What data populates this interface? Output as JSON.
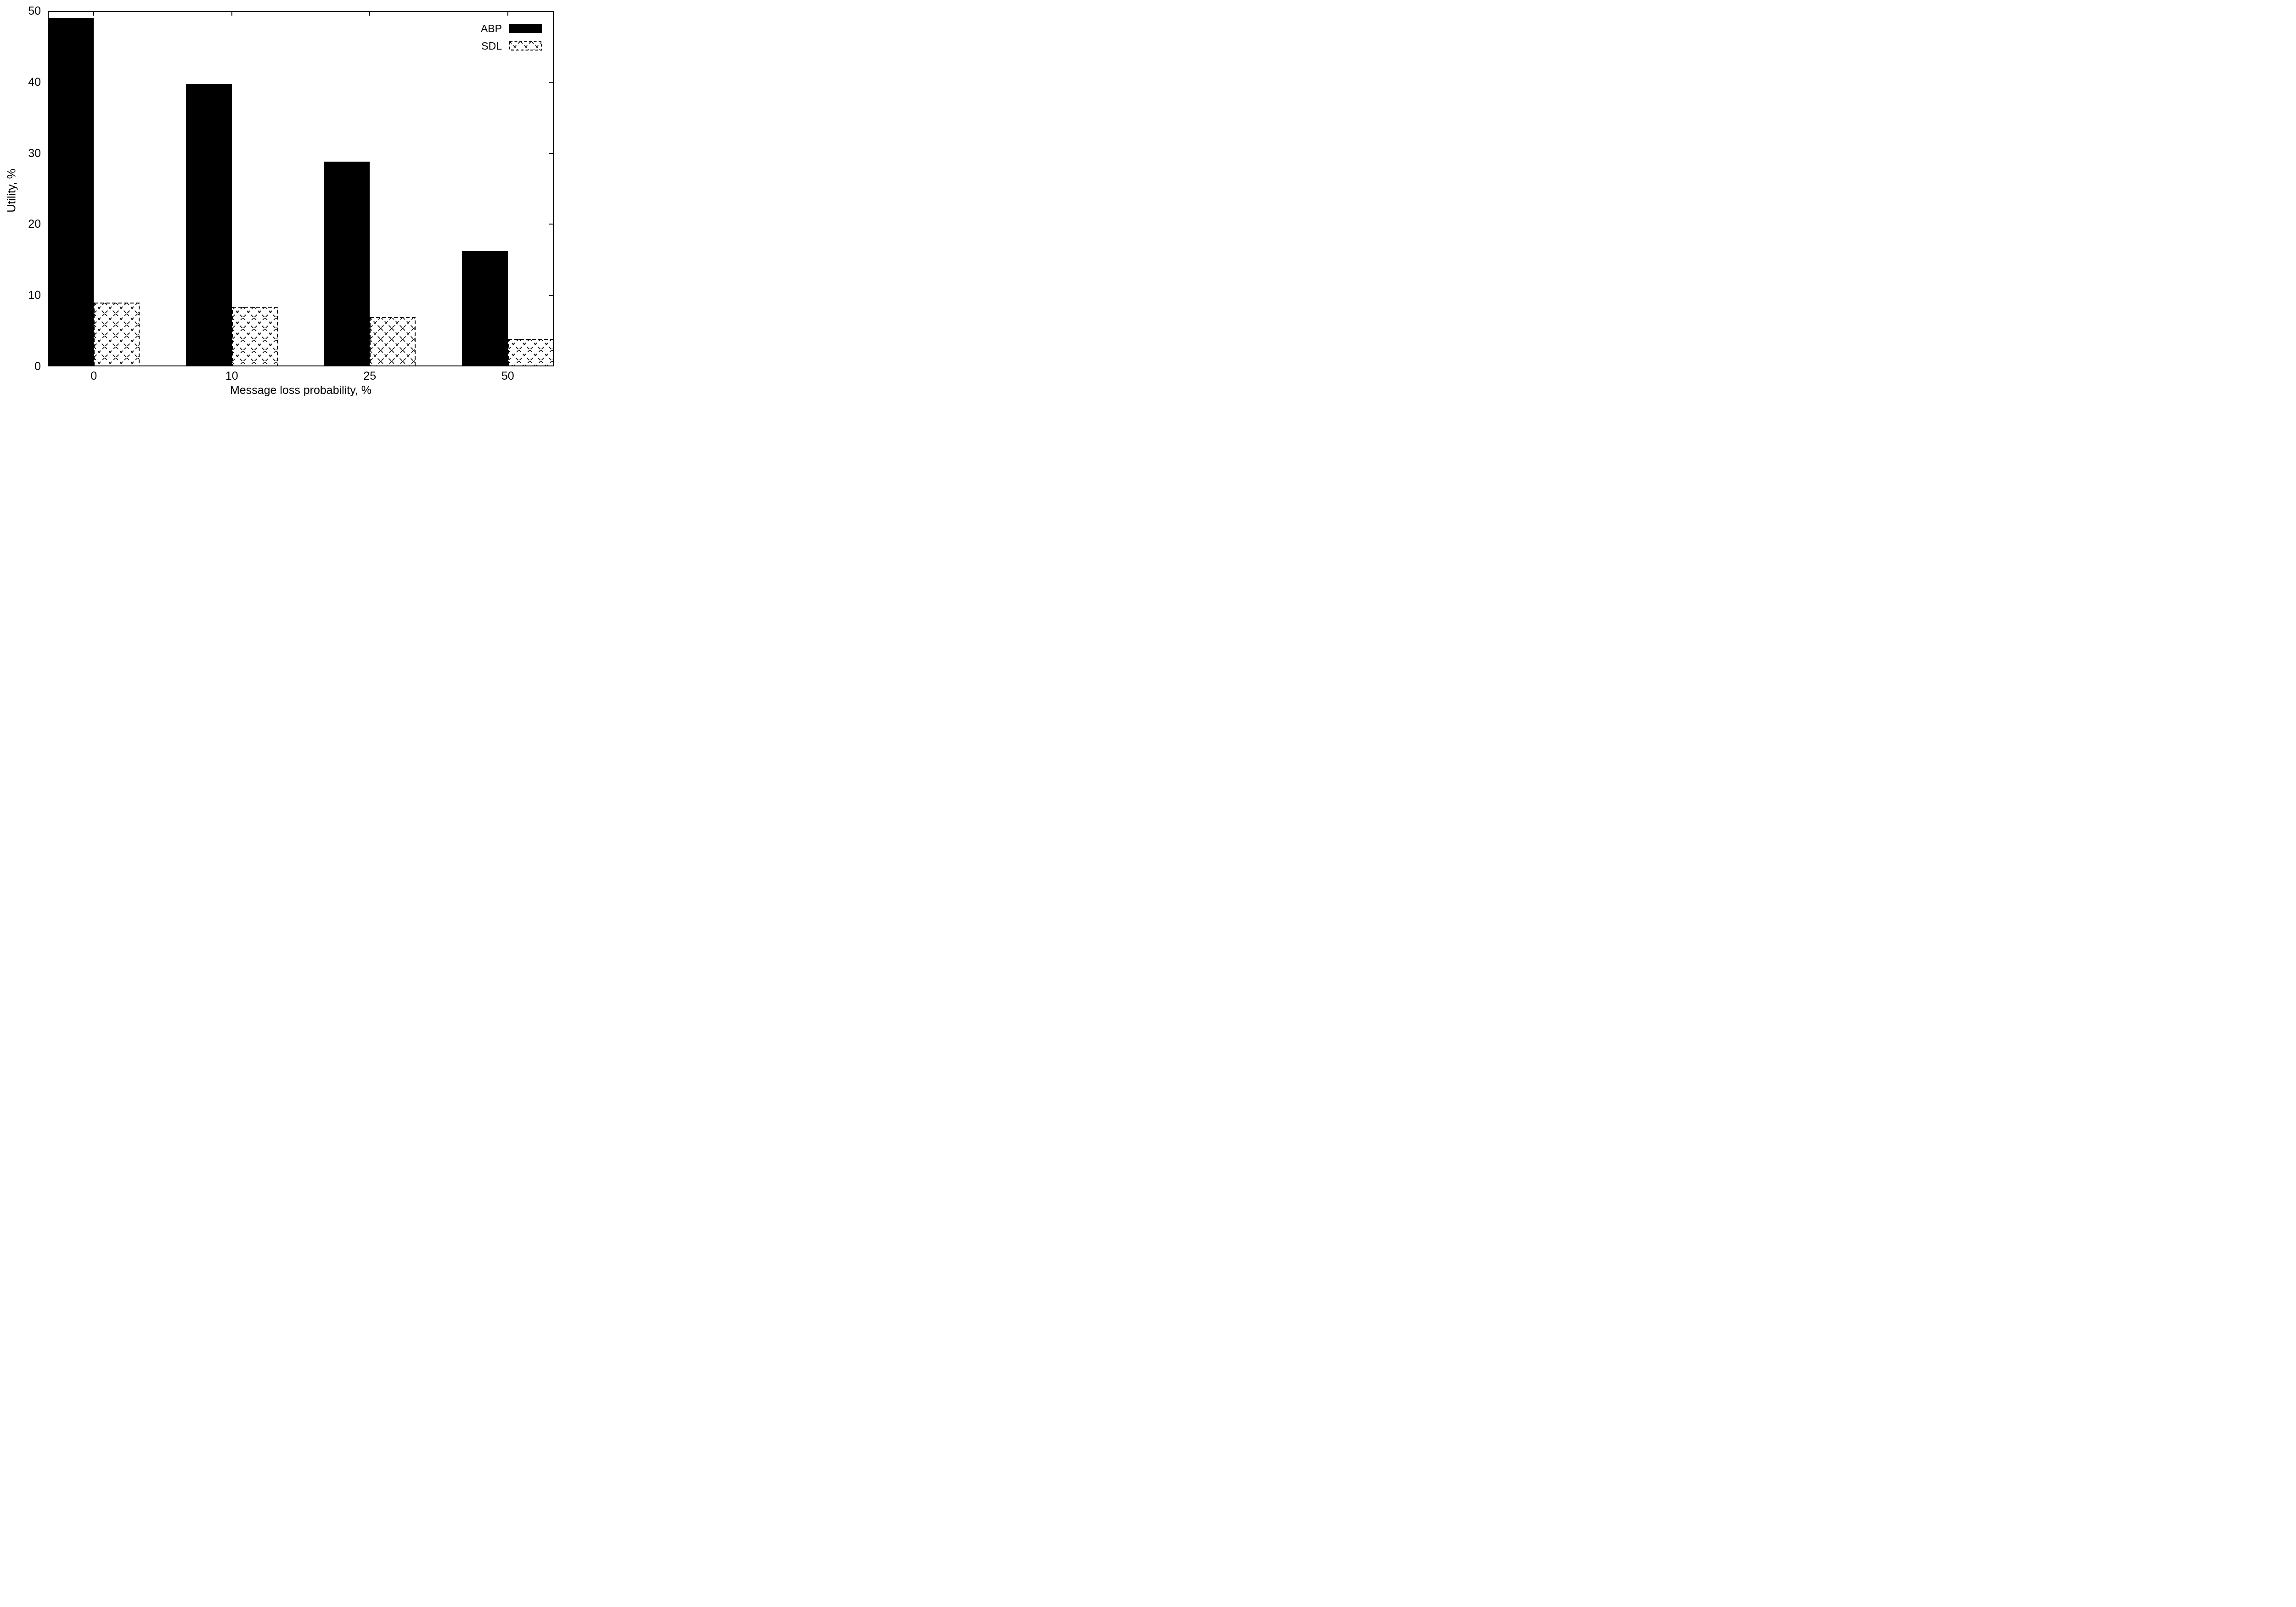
{
  "chart_data": {
    "type": "bar",
    "categories": [
      "0",
      "10",
      "25",
      "50"
    ],
    "series": [
      {
        "name": "ABP",
        "style": "solid-black",
        "values": [
          49.0,
          39.7,
          28.8,
          16.2
        ]
      },
      {
        "name": "SDL",
        "style": "hatched-cross",
        "values": [
          9.0,
          8.4,
          6.9,
          3.9
        ]
      }
    ],
    "title": "",
    "xlabel": "Message loss probability, %",
    "ylabel": "Utility, %",
    "ylim": [
      0,
      50
    ],
    "yticks": [
      0,
      10,
      20,
      30,
      40,
      50
    ],
    "x_tick_labels": [
      "0",
      "10",
      "25",
      "50"
    ],
    "grid": false,
    "legend_position": "top-right",
    "colors": {
      "foreground": "#000000",
      "background": "#ffffff"
    }
  }
}
